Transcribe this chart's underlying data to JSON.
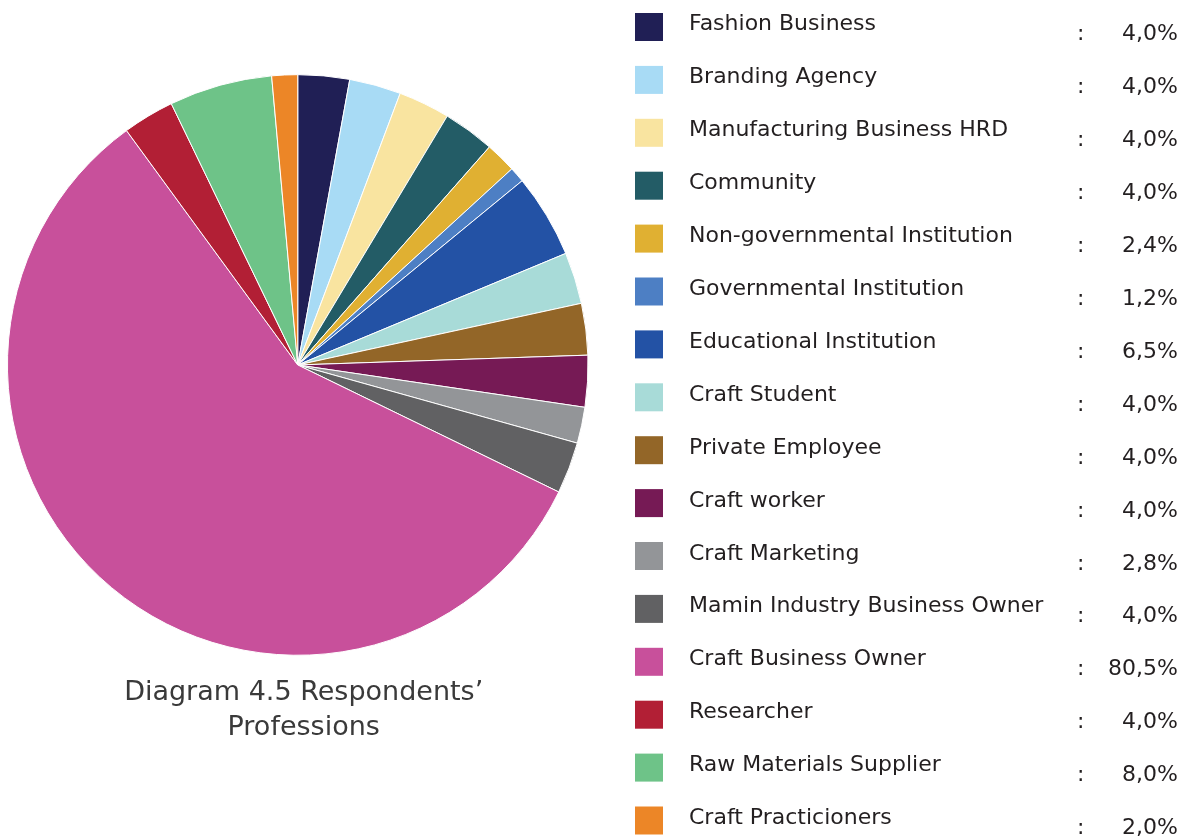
{
  "chart_data": {
    "type": "pie",
    "title": "Diagram 4.5 Respondents’ Professions",
    "categories": [
      "Fashion Business",
      "Branding Agency",
      "Manufacturing Business HRD",
      "Community",
      "Non-governmental Institution",
      "Governmental Institution",
      "Educational Institution",
      "Craft Student",
      "Private Employee",
      "Craft worker",
      "Craft Marketing",
      "Mamin Industry Business Owner",
      "Craft Business Owner",
      "Researcher",
      "Raw Materials Supplier",
      "Craft Practicioners"
    ],
    "values": [
      4.0,
      4.0,
      4.0,
      4.0,
      2.4,
      1.2,
      6.5,
      4.0,
      4.0,
      4.0,
      2.8,
      4.0,
      80.5,
      4.0,
      8.0,
      2.0
    ],
    "value_labels": [
      ": 4,0%",
      ": 4,0%",
      ": 4,0%",
      ": 4,0%",
      ": 2,4%",
      ": 1,2%",
      ": 6,5%",
      ": 4,0%",
      ": 4,0%",
      ": 4,0%",
      ": 2,8%",
      ": 4,0%",
      ": 80,5%",
      ": 4,0%",
      ": 8,0%",
      ": 2,0%"
    ],
    "colors": [
      "#201f55",
      "#a8dbf5",
      "#f9e4a0",
      "#235c66",
      "#e0b032",
      "#4d7fc4",
      "#2352a5",
      "#a8dbd8",
      "#936628",
      "#761a55",
      "#939598",
      "#616163",
      "#c8509b",
      "#b21f35",
      "#6ec388",
      "#ec8627"
    ],
    "legend": "right"
  }
}
